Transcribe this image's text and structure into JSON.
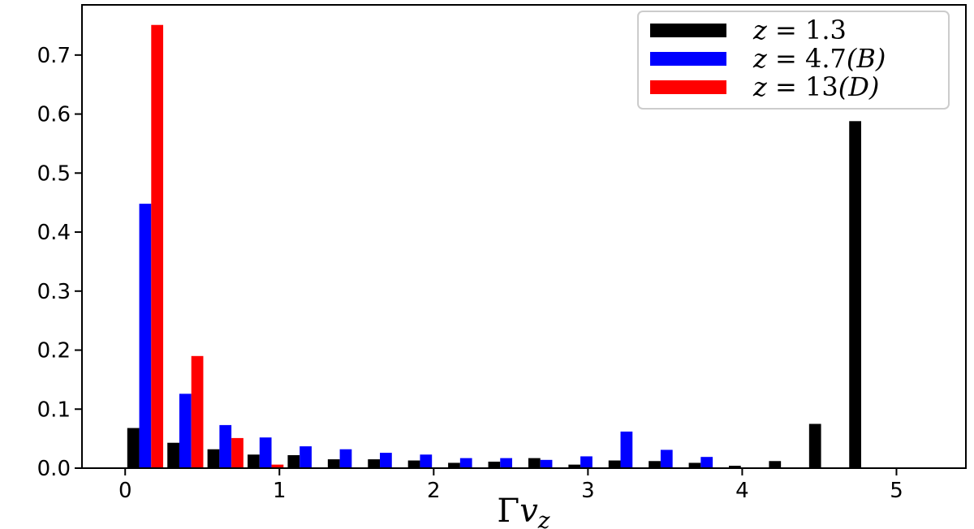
{
  "chart_data": {
    "type": "bar",
    "xlabel": "Γv_z",
    "ylabel": "",
    "title": "",
    "xlim": [
      -0.28,
      5.45
    ],
    "ylim": [
      0,
      0.785
    ],
    "bin_width": 0.26,
    "x": [
      0.13,
      0.39,
      0.65,
      0.91,
      1.17,
      1.43,
      1.69,
      1.95,
      2.21,
      2.47,
      2.73,
      2.99,
      3.25,
      3.51,
      3.77,
      4.03,
      4.29,
      4.55,
      4.81
    ],
    "xticks": [
      0,
      1,
      2,
      3,
      4,
      5
    ],
    "yticks": [
      0.0,
      0.1,
      0.2,
      0.3,
      0.4,
      0.5,
      0.6,
      0.7
    ],
    "ytick_labels": [
      "0.0",
      "0.1",
      "0.2",
      "0.3",
      "0.4",
      "0.5",
      "0.6",
      "0.7"
    ],
    "series": [
      {
        "name": "z = 1.3",
        "color": "#000000",
        "values": [
          0.068,
          0.043,
          0.032,
          0.023,
          0.022,
          0.015,
          0.015,
          0.013,
          0.009,
          0.011,
          0.017,
          0.006,
          0.013,
          0.012,
          0.009,
          0.004,
          0.012,
          0.075,
          0.588
        ]
      },
      {
        "name": "z = 4.7(B)",
        "color": "#0000ff",
        "values": [
          0.448,
          0.126,
          0.073,
          0.052,
          0.037,
          0.032,
          0.026,
          0.023,
          0.017,
          0.017,
          0.014,
          0.02,
          0.062,
          0.031,
          0.019,
          0,
          0,
          0,
          0
        ]
      },
      {
        "name": "z = 13(D)",
        "color": "#ff0000",
        "values": [
          0.751,
          0.19,
          0.051,
          0.006,
          0,
          0,
          0,
          0,
          0,
          0,
          0,
          0,
          0,
          0,
          0,
          0,
          0,
          0,
          0
        ]
      }
    ],
    "legend": {
      "position": "top-right",
      "entries": [
        {
          "label_prefix": "z",
          "label_eq": " = ",
          "label_value": "1.3",
          "label_paren": ""
        },
        {
          "label_prefix": "z",
          "label_eq": " = ",
          "label_value": "4.7",
          "label_paren": "(B)"
        },
        {
          "label_prefix": "z",
          "label_eq": " = ",
          "label_value": "13",
          "label_paren": "(D)"
        }
      ]
    },
    "grid": false
  }
}
